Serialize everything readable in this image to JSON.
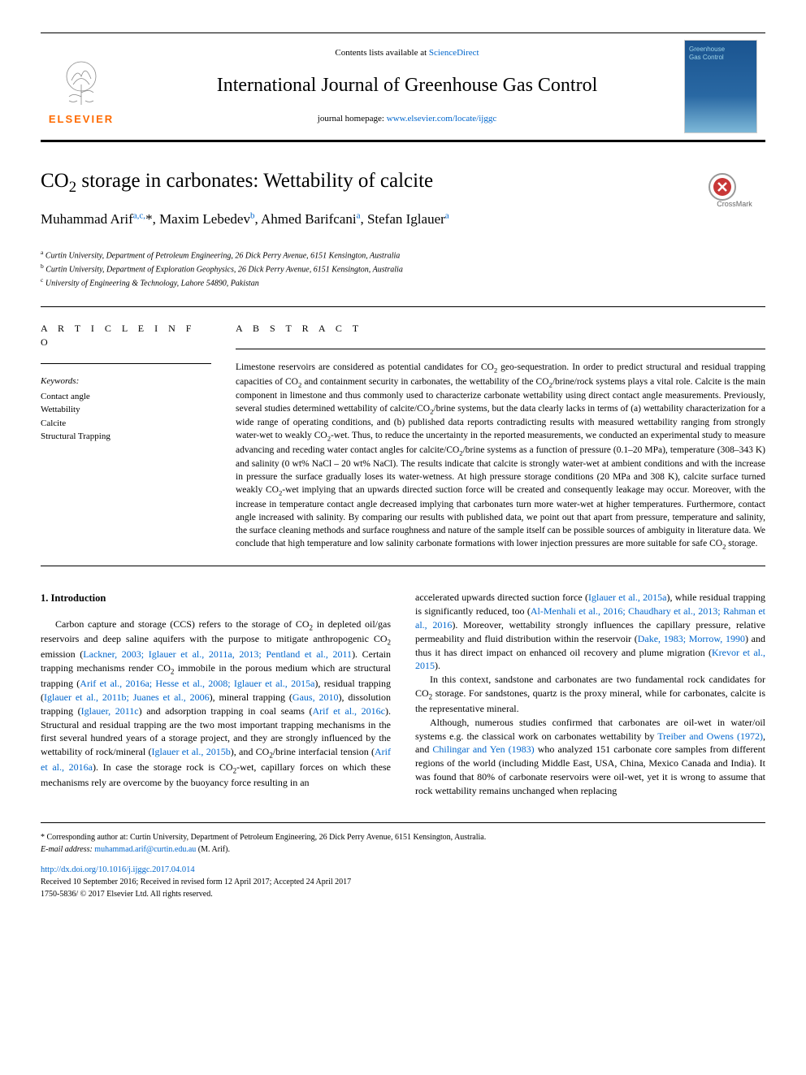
{
  "header": {
    "contents_prefix": "Contents lists available at ",
    "contents_link": "ScienceDirect",
    "journal_title": "International Journal of Greenhouse Gas Control",
    "homepage_prefix": "journal homepage: ",
    "homepage_link": "www.elsevier.com/locate/ijggc",
    "elsevier_label": "ELSEVIER",
    "cover_text_1": "Greenhouse",
    "cover_text_2": "Gas Control"
  },
  "article": {
    "title_html": "CO<sub>2</sub> storage in carbonates: Wettability of calcite",
    "authors_html": "Muhammad Arif<sup>a,c,</sup>*, Maxim Lebedev<sup>b</sup>, Ahmed Barifcani<sup>a</sup>, Stefan Iglauer<sup>a</sup>",
    "affiliations": [
      {
        "sup": "a",
        "text": "Curtin University, Department of Petroleum Engineering, 26 Dick Perry Avenue, 6151 Kensington, Australia"
      },
      {
        "sup": "b",
        "text": "Curtin University, Department of Exploration Geophysics, 26 Dick Perry Avenue, 6151 Kensington, Australia"
      },
      {
        "sup": "c",
        "text": "University of Engineering & Technology, Lahore 54890, Pakistan"
      }
    ]
  },
  "info": {
    "heading": "A R T I C L E  I N F O",
    "keywords_label": "Keywords:",
    "keywords": [
      "Contact angle",
      "Wettability",
      "Calcite",
      "Structural Trapping"
    ]
  },
  "abstract": {
    "heading": "A B S T R A C T",
    "text_html": "Limestone reservoirs are considered as potential candidates for CO<sub>2</sub> geo-sequestration. In order to predict structural and residual trapping capacities of CO<sub>2</sub> and containment security in carbonates, the wettability of the CO<sub>2</sub>/brine/rock systems plays a vital role. Calcite is the main component in limestone and thus commonly used to characterize carbonate wettability using direct contact angle measurements. Previously, several studies determined wettability of calcite/CO<sub>2</sub>/brine systems, but the data clearly lacks in terms of (a) wettability characterization for a wide range of operating conditions, and (b) published data reports contradicting results with measured wettability ranging from strongly water-wet to weakly CO<sub>2</sub>-wet. Thus, to reduce the uncertainty in the reported measurements, we conducted an experimental study to measure advancing and receding water contact angles for calcite/CO<sub>2</sub>/brine systems as a function of pressure (0.1–20 MPa), temperature (308–343 K) and salinity (0 wt% NaCl – 20 wt% NaCl). The results indicate that calcite is strongly water-wet at ambient conditions and with the increase in pressure the surface gradually loses its water-wetness. At high pressure storage conditions (20 MPa and 308 K), calcite surface turned weakly CO<sub>2</sub>-wet implying that an upwards directed suction force will be created and consequently leakage may occur. Moreover, with the increase in temperature contact angle decreased implying that carbonates turn more water-wet at higher temperatures. Furthermore, contact angle increased with salinity. By comparing our results with published data, we point out that apart from pressure, temperature and salinity, the surface cleaning methods and surface roughness and nature of the sample itself can be possible sources of ambiguity in literature data. We conclude that high temperature and low salinity carbonate formations with lower injection pressures are more suitable for safe CO<sub>2</sub> storage."
  },
  "body": {
    "section_heading": "1. Introduction",
    "col1_html": "<p>Carbon capture and storage (CCS) refers to the storage of CO<sub>2</sub> in depleted oil/gas reservoirs and deep saline aquifers with the purpose to mitigate anthropogenic CO<sub>2</sub> emission (<a href='#'>Lackner, 2003; Iglauer et al., 2011a, 2013; Pentland et al., 2011</a>). Certain trapping mechanisms render CO<sub>2</sub> immobile in the porous medium which are structural trapping (<a href='#'>Arif et al., 2016a; Hesse et al., 2008; Iglauer et al., 2015a</a>), residual trapping (<a href='#'>Iglauer et al., 2011b; Juanes et al., 2006</a>), mineral trapping (<a href='#'>Gaus, 2010</a>), dissolution trapping (<a href='#'>Iglauer, 2011c</a>) and adsorption trapping in coal seams (<a href='#'>Arif et al., 2016c</a>). Structural and residual trapping are the two most important trapping mechanisms in the first several hundred years of a storage project, and they are strongly influenced by the wettability of rock/mineral (<a href='#'>Iglauer et al., 2015b</a>), and CO<sub>2</sub>/brine interfacial tension (<a href='#'>Arif et al., 2016a</a>). In case the storage rock is CO<sub>2</sub>-wet, capillary forces on which these mechanisms rely are overcome by the buoyancy force resulting in an</p>",
    "col2_html": "<p style='text-indent:0'>accelerated upwards directed suction force (<a href='#'>Iglauer et al., 2015a</a>), while residual trapping is significantly reduced, too (<a href='#'>Al-Menhali et al., 2016; Chaudhary et al., 2013; Rahman et al., 2016</a>). Moreover, wettability strongly influences the capillary pressure, relative permeability and fluid distribution within the reservoir (<a href='#'>Dake, 1983; Morrow, 1990</a>) and thus it has direct impact on enhanced oil recovery and plume migration (<a href='#'>Krevor et al., 2015</a>).</p><p>In this context, sandstone and carbonates are two fundamental rock candidates for CO<sub>2</sub> storage. For sandstones, quartz is the proxy mineral, while for carbonates, calcite is the representative mineral.</p><p>Although, numerous studies confirmed that carbonates are oil-wet in water/oil systems e.g. the classical work on carbonates wettability by <a href='#'>Treiber and Owens (1972)</a>, and <a href='#'>Chilingar and Yen (1983)</a> who analyzed 151 carbonate core samples from different regions of the world (including Middle East, USA, China, Mexico Canada and India). It was found that 80% of carbonate reservoirs were oil-wet, yet it is wrong to assume that rock wettability remains unchanged when replacing</p>"
  },
  "footer": {
    "corresponding": "* Corresponding author at: Curtin University, Department of Petroleum Engineering, 26 Dick Perry Avenue, 6151 Kensington, Australia.",
    "email_label": "E-mail address: ",
    "email": "muhammad.arif@curtin.edu.au",
    "email_suffix": " (M. Arif).",
    "doi": "http://dx.doi.org/10.1016/j.ijggc.2017.04.014",
    "received": "Received 10 September 2016; Received in revised form 12 April 2017; Accepted 24 April 2017",
    "copyright": "1750-5836/ © 2017 Elsevier Ltd. All rights reserved."
  },
  "crossmark_label": "CrossMark",
  "colors": {
    "link": "#0066cc",
    "elsevier_orange": "#ff6b00",
    "cover_gradient_top": "#1a5490",
    "cover_gradient_bottom": "#7db8d8"
  }
}
